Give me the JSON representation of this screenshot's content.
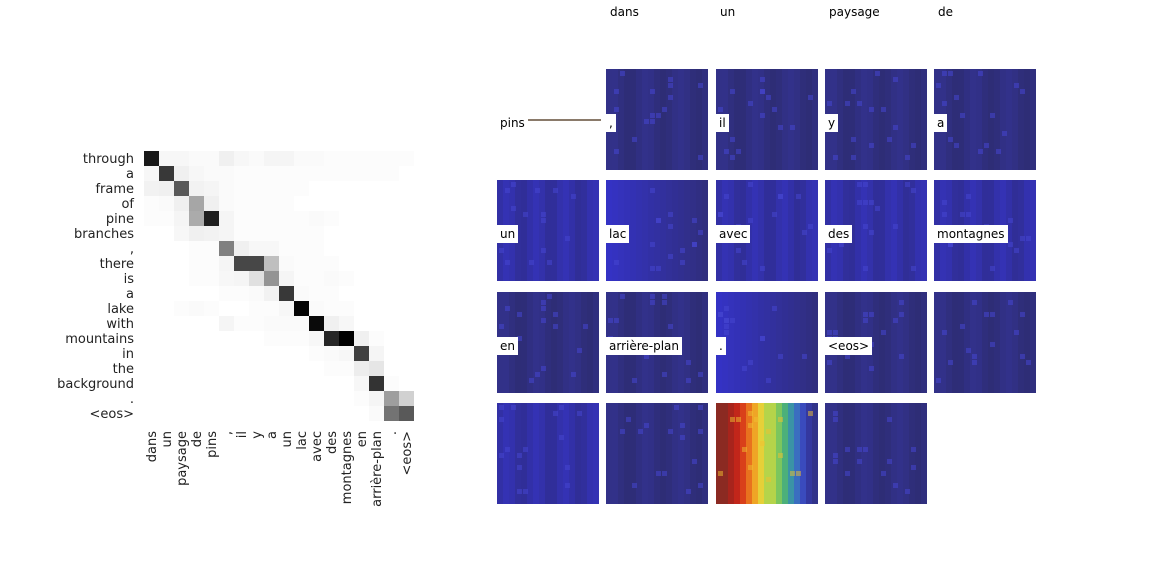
{
  "chart_data": [
    {
      "type": "heatmap",
      "title": "",
      "colormap": "greys",
      "grid": false,
      "y_labels": [
        "through",
        "a",
        "frame",
        "of",
        "pine",
        "branches",
        ",",
        "there",
        "is",
        "a",
        "lake",
        "with",
        "mountains",
        "in",
        "the",
        "background",
        ".",
        "<eos>"
      ],
      "x_labels": [
        "dans",
        "un",
        "paysage",
        "de",
        "pins",
        ",",
        "il",
        "y",
        "a",
        "un",
        "lac",
        "avec",
        "des",
        "montagnes",
        "en",
        "arrière-plan",
        ".",
        "<eos>"
      ],
      "values": [
        [
          0.9,
          0.03,
          0.03,
          0.02,
          0.02,
          0.06,
          0.03,
          0.02,
          0.04,
          0.04,
          0.02,
          0.02,
          0.01,
          0.01,
          0.01,
          0.01,
          0.01,
          0.01
        ],
        [
          0.03,
          0.78,
          0.06,
          0.03,
          0.02,
          0.02,
          0.01,
          0.01,
          0.01,
          0.01,
          0.01,
          0.01,
          0.01,
          0.01,
          0.01,
          0.01,
          0.01,
          0.0
        ],
        [
          0.05,
          0.06,
          0.65,
          0.05,
          0.04,
          0.02,
          0.01,
          0.01,
          0.01,
          0.01,
          0.01,
          0.0,
          0.0,
          0.0,
          0.0,
          0.0,
          0.0,
          0.0
        ],
        [
          0.01,
          0.02,
          0.06,
          0.35,
          0.06,
          0.02,
          0.01,
          0.01,
          0.01,
          0.01,
          0.0,
          0.0,
          0.0,
          0.0,
          0.0,
          0.0,
          0.0,
          0.0
        ],
        [
          0.01,
          0.01,
          0.04,
          0.33,
          0.88,
          0.04,
          0.01,
          0.01,
          0.01,
          0.01,
          0.01,
          0.02,
          0.01,
          0.0,
          0.0,
          0.0,
          0.0,
          0.0
        ],
        [
          0.0,
          0.0,
          0.03,
          0.06,
          0.05,
          0.04,
          0.01,
          0.01,
          0.01,
          0.01,
          0.01,
          0.01,
          0.0,
          0.0,
          0.0,
          0.0,
          0.0,
          0.0
        ],
        [
          0.0,
          0.0,
          0.0,
          0.01,
          0.01,
          0.5,
          0.06,
          0.03,
          0.03,
          0.01,
          0.01,
          0.01,
          0.0,
          0.0,
          0.0,
          0.0,
          0.0,
          0.0
        ],
        [
          0.0,
          0.0,
          0.0,
          0.01,
          0.01,
          0.04,
          0.72,
          0.72,
          0.25,
          0.02,
          0.01,
          0.01,
          0.01,
          0.0,
          0.0,
          0.0,
          0.0,
          0.0
        ],
        [
          0.0,
          0.0,
          0.0,
          0.01,
          0.01,
          0.03,
          0.04,
          0.12,
          0.42,
          0.04,
          0.01,
          0.01,
          0.02,
          0.01,
          0.0,
          0.0,
          0.0,
          0.0
        ],
        [
          0.0,
          0.0,
          0.0,
          0.0,
          0.0,
          0.01,
          0.01,
          0.02,
          0.05,
          0.78,
          0.02,
          0.01,
          0.01,
          0.0,
          0.0,
          0.0,
          0.0,
          0.0
        ],
        [
          0.0,
          0.0,
          0.01,
          0.02,
          0.01,
          0.0,
          0.0,
          0.01,
          0.01,
          0.03,
          0.98,
          0.02,
          0.01,
          0.01,
          0.0,
          0.0,
          0.0,
          0.0
        ],
        [
          0.0,
          0.0,
          0.0,
          0.0,
          0.0,
          0.04,
          0.01,
          0.01,
          0.02,
          0.02,
          0.02,
          0.96,
          0.06,
          0.03,
          0.0,
          0.0,
          0.0,
          0.0
        ],
        [
          0.0,
          0.0,
          0.0,
          0.0,
          0.0,
          0.0,
          0.0,
          0.0,
          0.01,
          0.01,
          0.01,
          0.03,
          0.85,
          1.0,
          0.06,
          0.01,
          0.0,
          0.0
        ],
        [
          0.0,
          0.0,
          0.0,
          0.0,
          0.0,
          0.0,
          0.0,
          0.0,
          0.0,
          0.0,
          0.0,
          0.01,
          0.02,
          0.03,
          0.75,
          0.04,
          0.0,
          0.0
        ],
        [
          0.0,
          0.0,
          0.0,
          0.0,
          0.0,
          0.0,
          0.0,
          0.0,
          0.0,
          0.0,
          0.0,
          0.0,
          0.01,
          0.01,
          0.07,
          0.1,
          0.0,
          0.0
        ],
        [
          0.0,
          0.0,
          0.0,
          0.0,
          0.0,
          0.0,
          0.0,
          0.0,
          0.0,
          0.0,
          0.0,
          0.0,
          0.0,
          0.0,
          0.03,
          0.8,
          0.01,
          0.0
        ],
        [
          0.0,
          0.0,
          0.0,
          0.0,
          0.0,
          0.0,
          0.0,
          0.0,
          0.0,
          0.0,
          0.0,
          0.0,
          0.0,
          0.0,
          0.01,
          0.04,
          0.38,
          0.18
        ],
        [
          0.0,
          0.0,
          0.0,
          0.0,
          0.0,
          0.0,
          0.0,
          0.0,
          0.0,
          0.0,
          0.0,
          0.0,
          0.0,
          0.0,
          0.0,
          0.02,
          0.55,
          0.65
        ]
      ]
    },
    {
      "type": "image_grid",
      "title": "",
      "column_headings": [
        "dans",
        "un",
        "paysage",
        "de"
      ],
      "tiles": [
        {
          "caption": "pins",
          "map": "none"
        },
        {
          "caption": ",",
          "map": "dark"
        },
        {
          "caption": "il",
          "map": "dark"
        },
        {
          "caption": "y",
          "map": "dark"
        },
        {
          "caption": "a",
          "map": "dark"
        },
        {
          "caption": "un",
          "map": "blue"
        },
        {
          "caption": "lac",
          "map": "blue-left"
        },
        {
          "caption": "avec",
          "map": "blue"
        },
        {
          "caption": "des",
          "map": "blue"
        },
        {
          "caption": "montagnes",
          "map": "blue"
        },
        {
          "caption": "en",
          "map": "dark"
        },
        {
          "caption": "arrière-plan",
          "map": "dark"
        },
        {
          "caption": ".",
          "map": "blue-left"
        },
        {
          "caption": "<eos>",
          "map": "dark"
        },
        {
          "caption": "",
          "map": "dark"
        },
        {
          "caption": "",
          "map": "blue"
        },
        {
          "caption": "",
          "map": "dark"
        },
        {
          "caption": "",
          "map": "jet"
        },
        {
          "caption": "",
          "map": "dark"
        }
      ],
      "colors": {
        "dark": "#302f7c",
        "blue": "#3030a8",
        "bright": "#3434c4",
        "connector": "#8a7a6a"
      }
    }
  ]
}
